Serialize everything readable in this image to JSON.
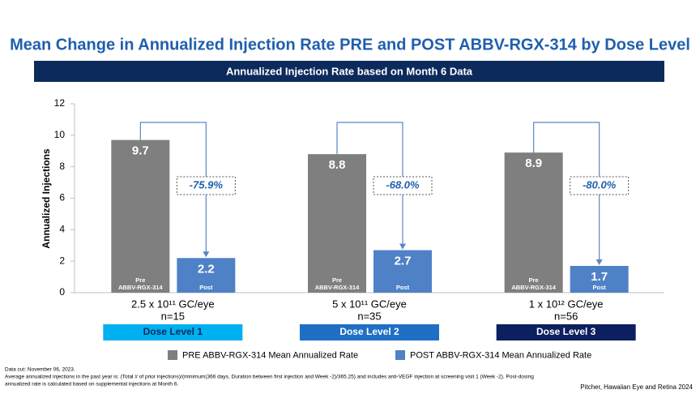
{
  "chart_data": {
    "type": "bar",
    "title": "Mean Change in Annualized Injection Rate PRE and POST ABBV-RGX-314 by Dose Level",
    "subtitle": "Annualized Injection Rate based on Month 6 Data",
    "y_label": "Annualized Injections",
    "categories": [
      "2.5 x 10¹¹ GC/eye",
      "5 x 10¹¹ GC/eye",
      "1 x 10¹² GC/eye"
    ],
    "n_labels": [
      "n=15",
      "n=35",
      "n=56"
    ],
    "dose_levels": [
      {
        "label": "Dose Level 1",
        "color": "#00b0f0"
      },
      {
        "label": "Dose Level 2",
        "color": "#1f6fc5"
      },
      {
        "label": "Dose Level 3",
        "color": "#0c1f5e"
      }
    ],
    "series": [
      {
        "name": "PRE ABBV-RGX-314 Mean Annualized Rate",
        "color": "#7f7f7f",
        "inner_label": [
          "Pre",
          "ABBV-RGX-314"
        ],
        "values": [
          9.7,
          8.8,
          8.9
        ]
      },
      {
        "name": "POST ABBV-RGX-314 Mean Annualized Rate",
        "color": "#4f81c7",
        "inner_label": [
          "Post"
        ],
        "values": [
          2.2,
          2.7,
          1.7
        ]
      }
    ],
    "changes": [
      "-75.9%",
      "-68.0%",
      "-80.0%"
    ],
    "ylim": [
      0,
      12
    ],
    "yticks": [
      0,
      2,
      4,
      6,
      8,
      10,
      12
    ],
    "grid": false,
    "footnotes": [
      "Data cut: November 06, 2023.",
      "Average annualized injections in the past year is: (Total # of prior injections)/(minimum(366 days, Duration between first injection and Week -2)/365.25) and includes anti-VEGF injection at screening visit 1 (Week -2). Post-dosing",
      "annualized rate is calculated based on supplemental injections at Month 6."
    ],
    "source": "Pitcher, Hawaiian Eye and Retina 2024"
  }
}
